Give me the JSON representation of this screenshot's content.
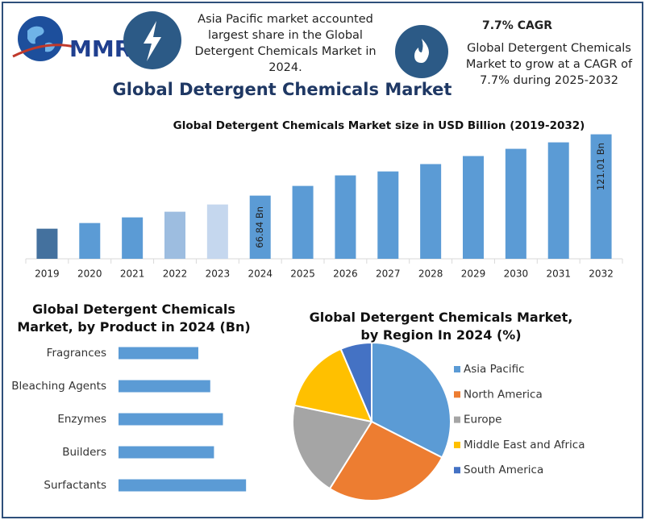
{
  "header": {
    "logo": "MMR",
    "info_left": "Asia Pacific market accounted largest share in the Global Detergent Chemicals Market in 2024.",
    "cagr_title": "7.7% CAGR",
    "cagr_text": "Global Detergent Chemicals Market to grow at a CAGR of 7.7% during 2025-2032",
    "title": "Global Detergent Chemicals Market"
  },
  "chart_data": [
    {
      "type": "bar",
      "title": "Global Detergent Chemicals Market size in USD Billion (2019-2032)",
      "categories": [
        "2019",
        "2020",
        "2021",
        "2022",
        "2023",
        "2024",
        "2025",
        "2026",
        "2027",
        "2028",
        "2029",
        "2030",
        "2031",
        "2032"
      ],
      "values": [
        37.6,
        42.6,
        47.6,
        52.6,
        59.0,
        66.84,
        75.4,
        84.7,
        88.2,
        94.7,
        101.8,
        108.2,
        113.9,
        121.01
      ],
      "value_labels": [
        null,
        null,
        null,
        null,
        null,
        "66.84 Bn",
        null,
        null,
        null,
        null,
        null,
        null,
        null,
        "121.01 Bn"
      ],
      "colors": [
        "#44719e",
        "#5b9bd5",
        "#5b9bd5",
        "#9dbde0",
        "#c5d7ee",
        "#5b9bd5",
        "#5b9bd5",
        "#5b9bd5",
        "#5b9bd5",
        "#5b9bd5",
        "#5b9bd5",
        "#5b9bd5",
        "#5b9bd5",
        "#5b9bd5"
      ],
      "ylim": [
        11,
        125
      ]
    },
    {
      "type": "barh",
      "title": "Global Detergent Chemicals Market, by Product  in 2024 (Bn)",
      "categories": [
        "Fragrances",
        "Bleaching Agents",
        "Enzymes",
        "Builders",
        "Surfactants"
      ],
      "values": [
        10.7,
        12.3,
        14.0,
        12.8,
        17.1
      ],
      "color": "#5b9bd5",
      "xlim": [
        0,
        20
      ]
    },
    {
      "type": "pie",
      "title": "Global Detergent Chemicals Market, by Region In 2024 (%)",
      "categories": [
        "Asia Pacific",
        "North America",
        "Europe",
        "Middle East and Africa",
        "South America"
      ],
      "values": [
        32.5,
        26.4,
        19.4,
        15.3,
        6.4
      ],
      "colors": [
        "#5b9bd5",
        "#ed7d31",
        "#a5a5a5",
        "#ffc000",
        "#4472c4"
      ],
      "legend": "right"
    }
  ]
}
